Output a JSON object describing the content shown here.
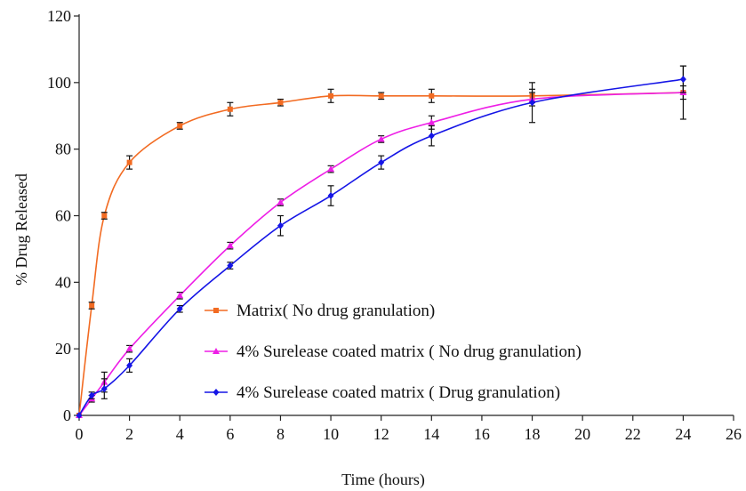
{
  "chart_data": {
    "type": "line",
    "xlabel": "Time (hours)",
    "ylabel": "% Drug Released",
    "xlim": [
      0,
      26
    ],
    "ylim": [
      0,
      120
    ],
    "xticks": [
      0,
      2,
      4,
      6,
      8,
      10,
      12,
      14,
      16,
      18,
      20,
      22,
      24,
      26
    ],
    "yticks": [
      0,
      20,
      40,
      60,
      80,
      100,
      120
    ],
    "grid": false,
    "legend_position": "lower-right",
    "series": [
      {
        "name": "Matrix( No drug granulation)",
        "color": "#f26b22",
        "marker": "square",
        "x": [
          0,
          0.5,
          1,
          2,
          4,
          6,
          8,
          10,
          12,
          14,
          18,
          24
        ],
        "y": [
          0,
          33,
          60,
          76,
          87,
          92,
          94,
          96,
          96,
          96,
          96,
          97
        ],
        "err": [
          0,
          1,
          1,
          2,
          1,
          2,
          1,
          2,
          1,
          2,
          2,
          2
        ]
      },
      {
        "name": "4% Surelease coated matrix ( No drug granulation)",
        "color": "#ee1ee6",
        "marker": "triangle",
        "x": [
          0,
          0.5,
          1,
          2,
          4,
          6,
          8,
          10,
          12,
          14,
          18,
          24
        ],
        "y": [
          0,
          5,
          10,
          20,
          36,
          51,
          64,
          74,
          83,
          88,
          95,
          97
        ],
        "err": [
          0,
          1,
          3,
          1,
          1,
          1,
          1,
          1,
          1,
          2,
          2,
          8
        ]
      },
      {
        "name": "4% Surelease coated matrix ( Drug granulation)",
        "color": "#1515e6",
        "marker": "diamond",
        "x": [
          0,
          0.5,
          1,
          2,
          4,
          6,
          8,
          10,
          12,
          14,
          18,
          24
        ],
        "y": [
          0,
          6,
          8,
          15,
          32,
          45,
          57,
          66,
          76,
          84,
          94,
          101
        ],
        "err": [
          0,
          1,
          3,
          2,
          1,
          1,
          3,
          3,
          2,
          3,
          6,
          4
        ]
      }
    ]
  }
}
